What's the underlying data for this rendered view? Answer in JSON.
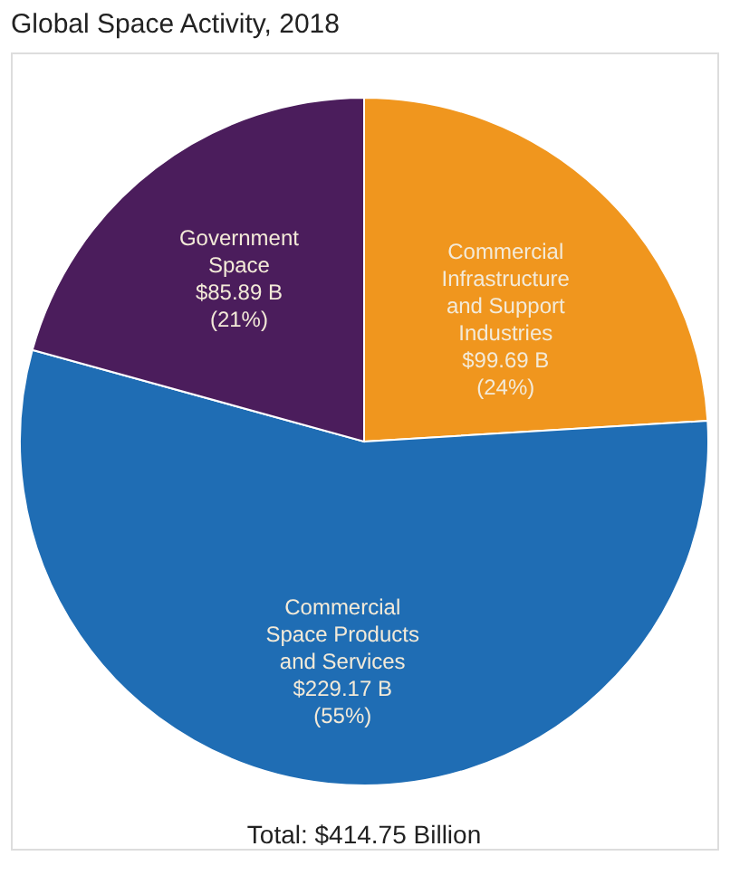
{
  "chart_data": {
    "type": "pie",
    "title": "Global Space Activity, 2018",
    "categories": [
      "Commercial Infrastructure and Support Industries",
      "Commercial Space Products and Services",
      "Government Space"
    ],
    "values": [
      99.69,
      229.17,
      85.89
    ],
    "colors": [
      "#f0961e",
      "#1f6db4",
      "#4b1d5c"
    ],
    "value_labels": [
      "$99.69 B (24%)",
      "$229.17 B (55%)",
      "$85.89 B (21%)"
    ],
    "annotations": [
      "Total: $414.75 Billion"
    ]
  }
}
